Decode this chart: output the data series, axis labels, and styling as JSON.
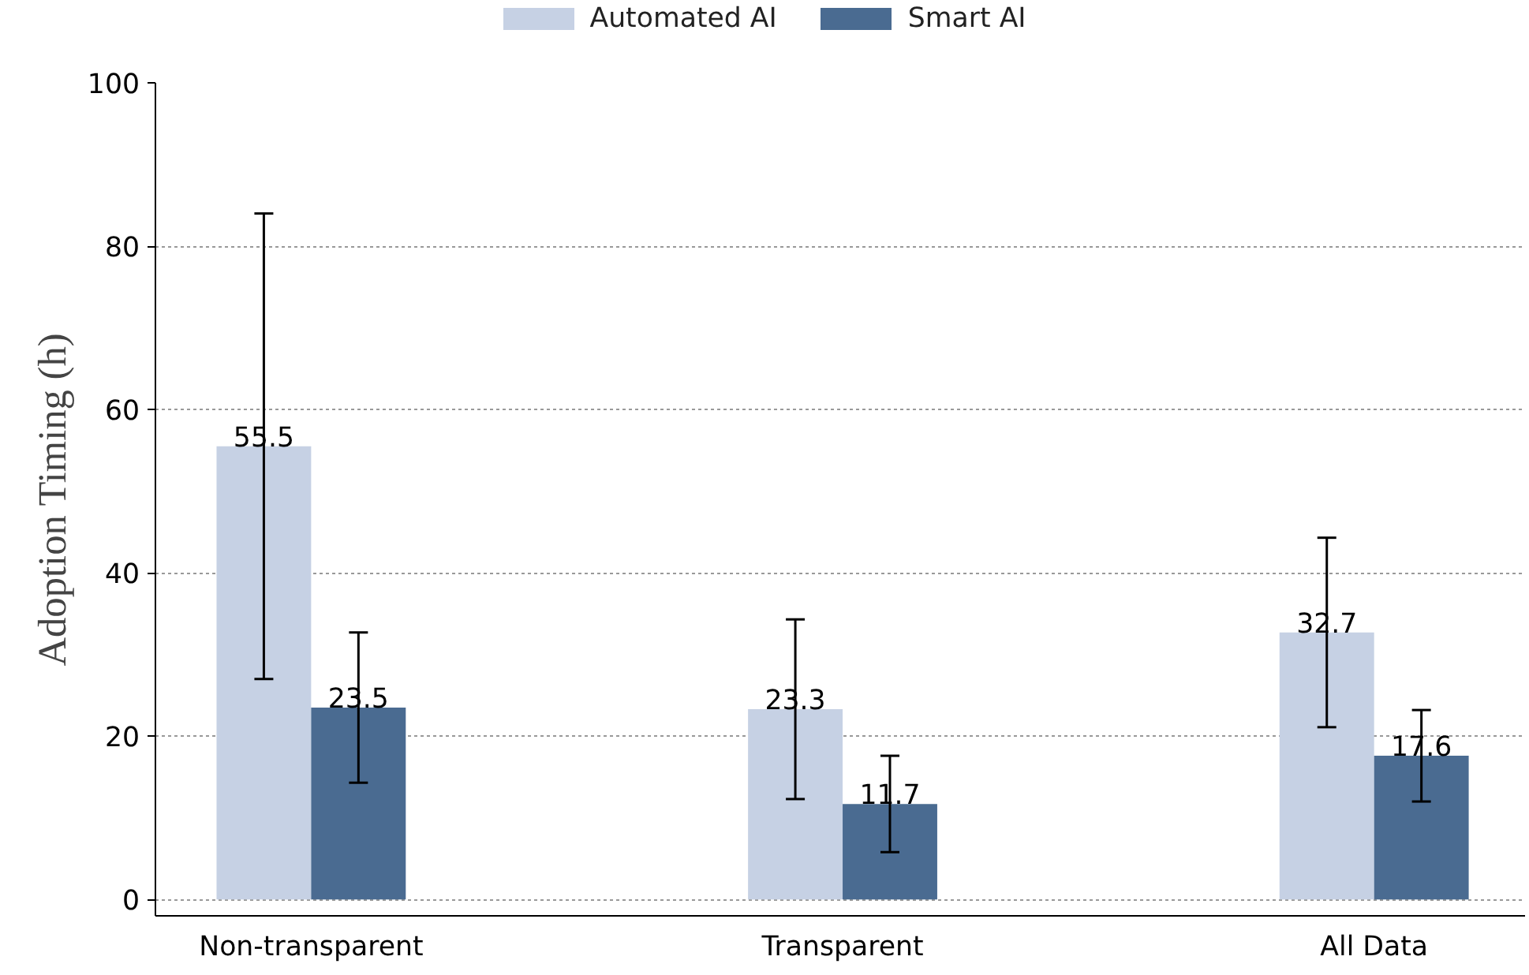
{
  "chart_data": {
    "type": "bar",
    "ylabel": "Adoption Timing (h)",
    "categories": [
      "Non-transparent",
      "Transparent",
      "All Data"
    ],
    "series": [
      {
        "name": "Automated AI",
        "color": "#c6d1e4",
        "values": [
          55.5,
          23.3,
          32.7
        ],
        "errors": [
          28.5,
          11.0,
          11.6
        ]
      },
      {
        "name": "Smart AI",
        "color": "#4a6b91",
        "values": [
          23.5,
          11.7,
          17.6
        ],
        "errors": [
          9.2,
          5.9,
          5.6
        ]
      }
    ],
    "ylim": [
      -2,
      100
    ],
    "yticks": [
      0,
      20,
      40,
      60,
      80,
      100
    ],
    "grid": "y",
    "legend": "top",
    "data_labels": true
  }
}
